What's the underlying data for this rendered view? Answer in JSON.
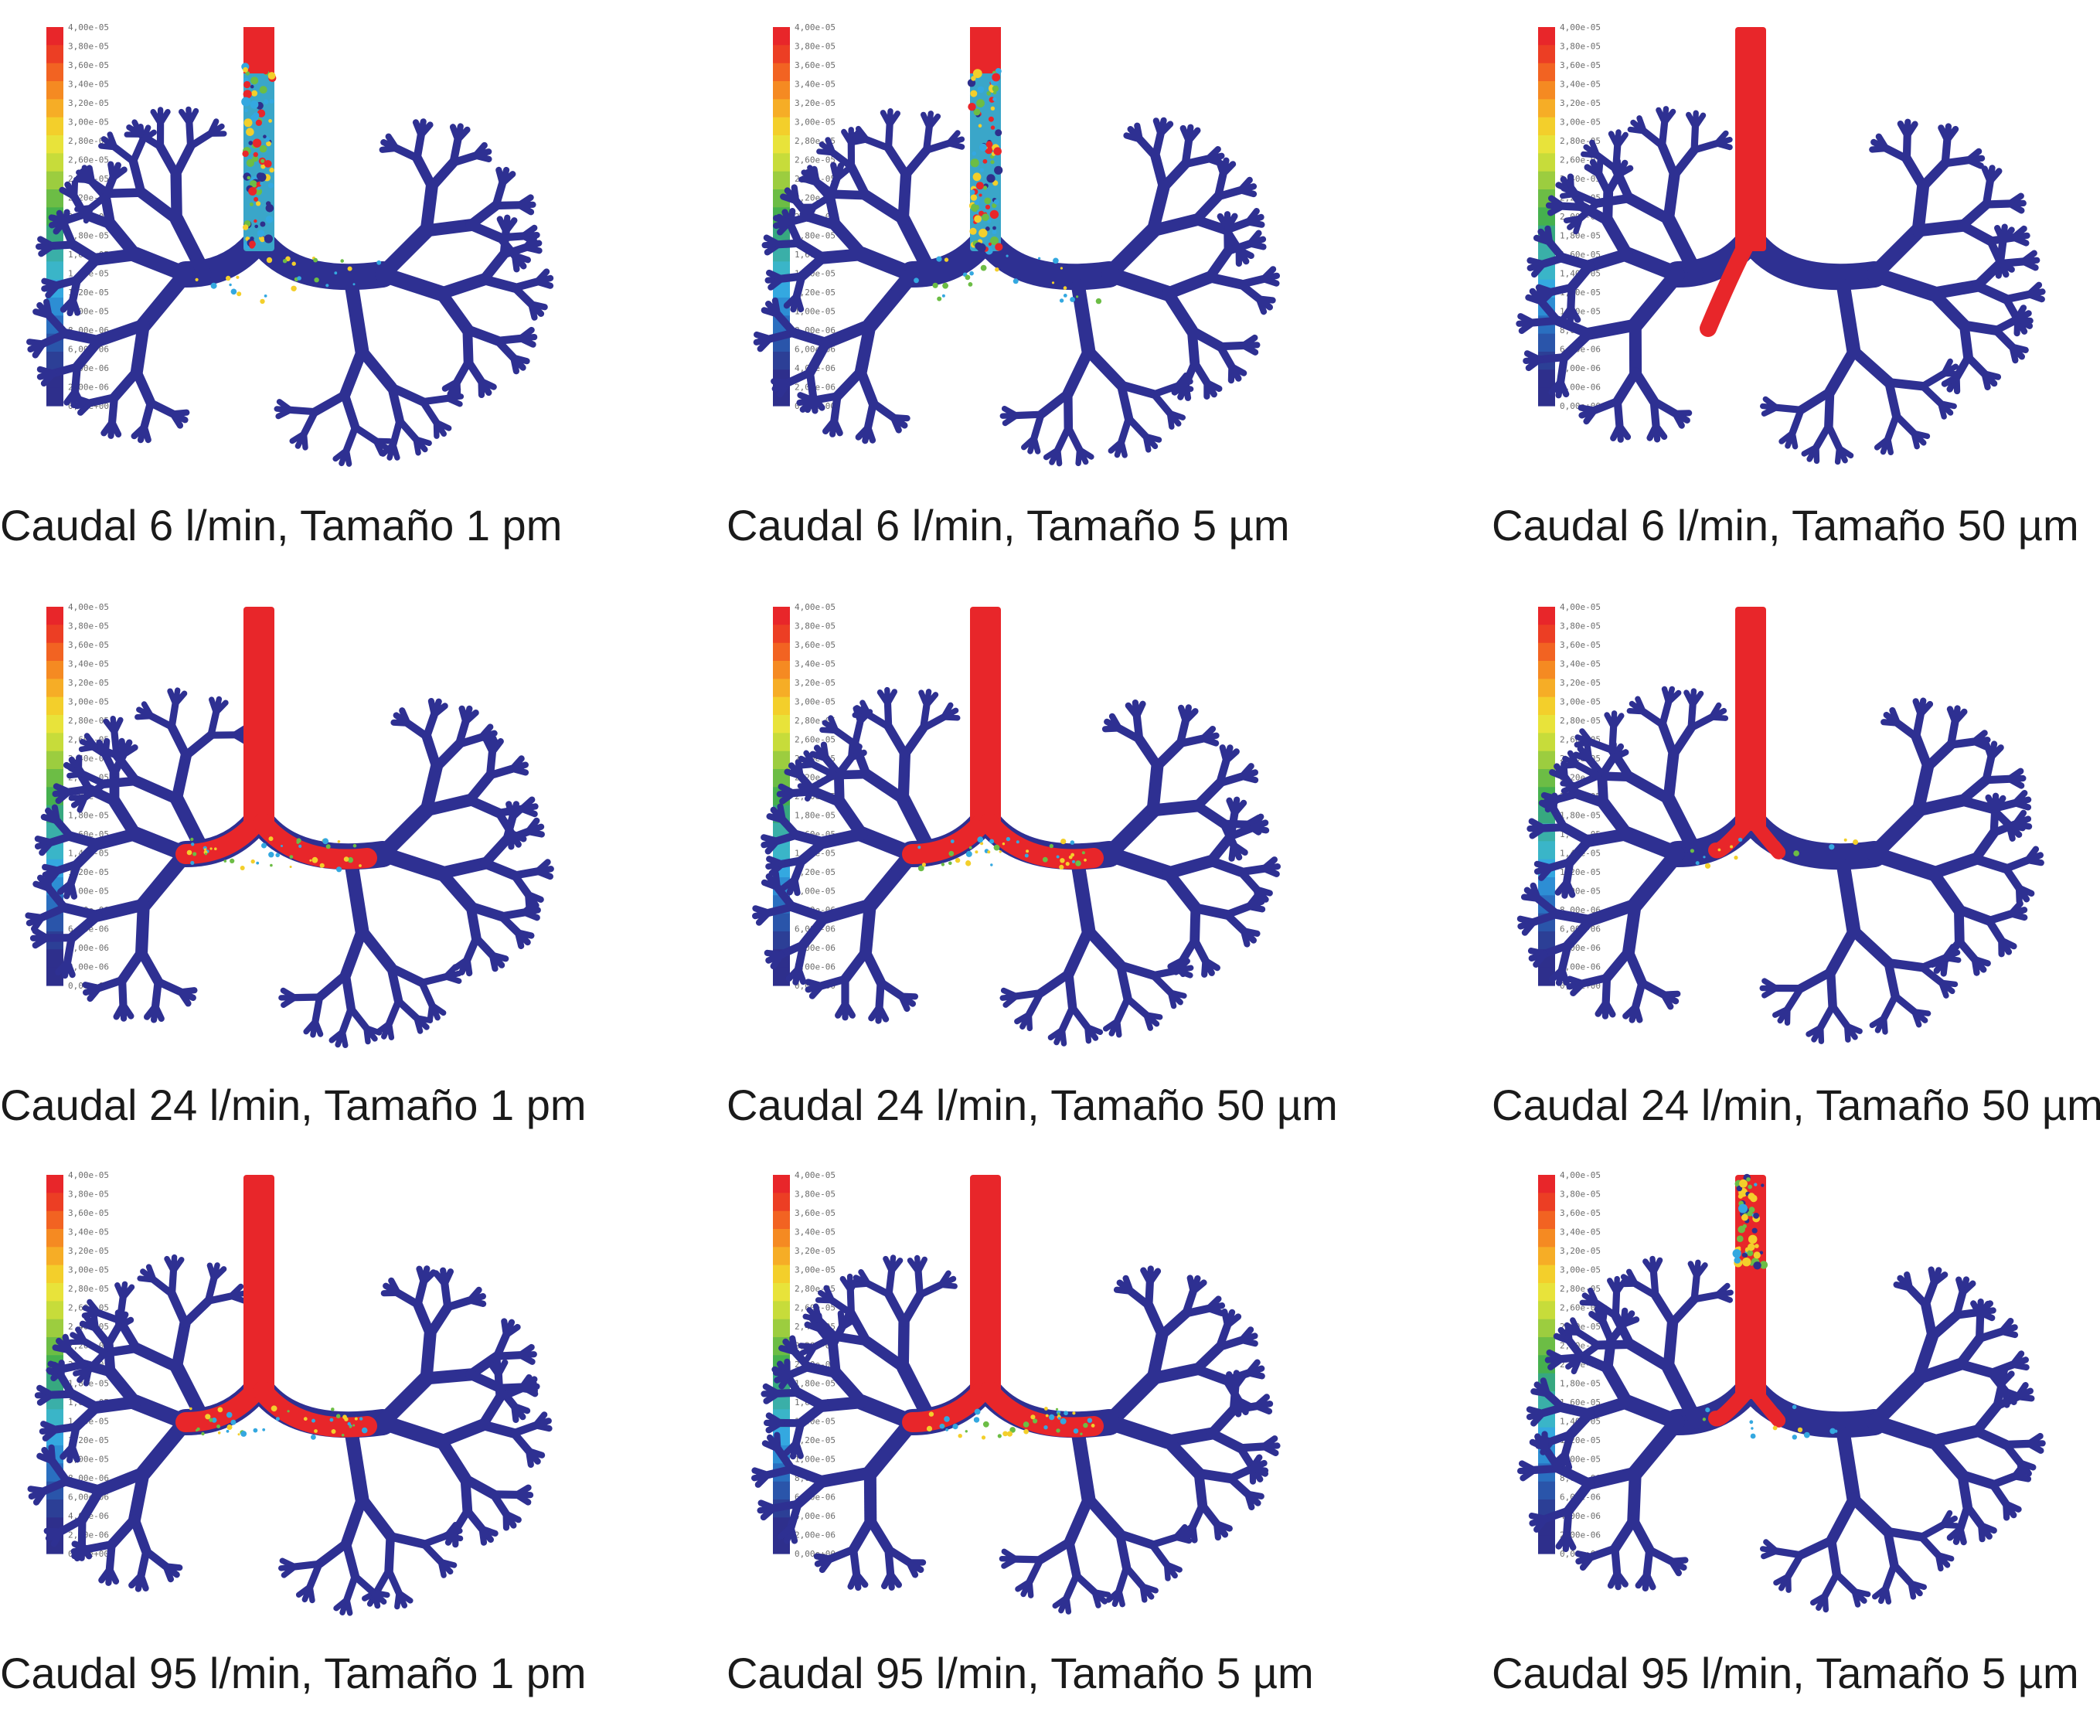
{
  "figure": {
    "colorbar_ticks": [
      "4,00e-05",
      "3,80e-05",
      "3,60e-05",
      "3,40e-05",
      "3,20e-05",
      "3,00e-05",
      "2,80e-05",
      "2,60e-05",
      "2,40e-05",
      "2,20e-05",
      "2,00e-05",
      "1,80e-05",
      "1,60e-05",
      "1,40e-05",
      "1,20e-05",
      "1,00e-05",
      "8,00e-06",
      "6,00e-06",
      "4,00e-06",
      "2,00e-06",
      "0,00e+00"
    ],
    "colorbar_colors": [
      "#e8262a",
      "#ec3e24",
      "#f26322",
      "#f58a22",
      "#f6ad26",
      "#f3cf2b",
      "#e8e33a",
      "#c7dc3a",
      "#9ccd3f",
      "#6cbd45",
      "#45b04e",
      "#37a880",
      "#3aafa8",
      "#3ab5c8",
      "#34a8e0",
      "#2d8ed4",
      "#2a6fc0",
      "#2a55aa",
      "#2c3f96",
      "#2e2f8c",
      "#2e2f8c"
    ],
    "tissue_color": "#2e3092",
    "deposit_color": "#e8262a",
    "panels": [
      {
        "caption": "Caudal 6 l/min, Tamaño 1 pm",
        "trachea": "mixed",
        "spots": "light"
      },
      {
        "caption": "Caudal 6 l/min, Tamaño 5 µm",
        "trachea": "mixed",
        "spots": "light"
      },
      {
        "caption": "Caudal 6 l/min, Tamaño 50 µm",
        "trachea": "red",
        "spots": "right-main"
      },
      {
        "caption": "Caudal 24 l/min, Tamaño 1 pm",
        "trachea": "red",
        "spots": "carina"
      },
      {
        "caption": "Caudal 24 l/min, Tamaño 50 µm",
        "trachea": "red",
        "spots": "carina"
      },
      {
        "caption": "Caudal 24 l/min, Tamaño 50 µm",
        "trachea": "red",
        "spots": "carina-small"
      },
      {
        "caption": "Caudal 95 l/min, Tamaño 1 pm",
        "trachea": "red",
        "spots": "carina"
      },
      {
        "caption": "Caudal 95 l/min, Tamaño 5 µm",
        "trachea": "red",
        "spots": "carina"
      },
      {
        "caption": "Caudal 95 l/min, Tamaño 5 µm",
        "trachea": "mixed-top",
        "spots": "carina-small"
      }
    ]
  }
}
